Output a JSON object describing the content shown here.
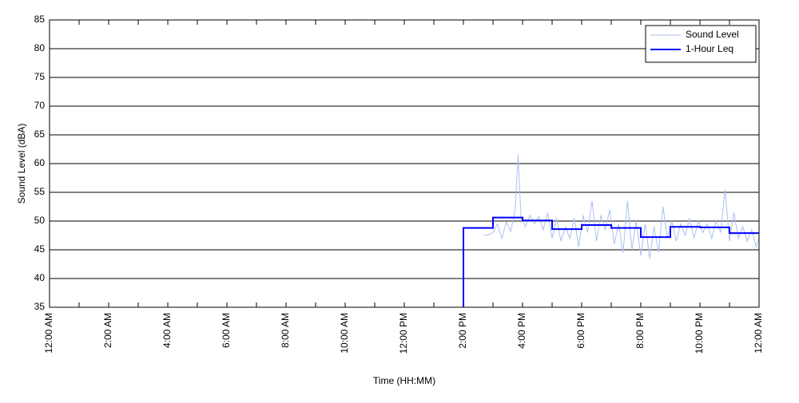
{
  "chart_data": {
    "type": "line",
    "y_label": "Sound Level (dBA)",
    "x_label": "Time (HH:MM)",
    "xlim": [
      0,
      24
    ],
    "xticks": [
      {
        "value": 0,
        "label": "12:00 AM"
      },
      {
        "value": 2,
        "label": "2:00 AM"
      },
      {
        "value": 4,
        "label": "4:00 AM"
      },
      {
        "value": 6,
        "label": "6:00 AM"
      },
      {
        "value": 8,
        "label": "8:00 AM"
      },
      {
        "value": 10,
        "label": "10:00 AM"
      },
      {
        "value": 12,
        "label": "12:00 PM"
      },
      {
        "value": 14,
        "label": "2:00 PM"
      },
      {
        "value": 16,
        "label": "4:00 PM"
      },
      {
        "value": 18,
        "label": "6:00 PM"
      },
      {
        "value": 20,
        "label": "8:00 PM"
      },
      {
        "value": 22,
        "label": "10:00 PM"
      },
      {
        "value": 24,
        "label": "12:00 AM"
      }
    ],
    "ylim": [
      35,
      85
    ],
    "yticks": [
      35,
      40,
      45,
      50,
      55,
      60,
      65,
      70,
      75,
      80,
      85
    ],
    "grid": true,
    "legend": "upper right",
    "series": [
      {
        "name": "Sound Level",
        "color": "#a9bff2",
        "step": false,
        "x": [
          14.7,
          14.85,
          15,
          15.15,
          15.3,
          15.45,
          15.6,
          15.75,
          15.85,
          15.95,
          16.1,
          16.25,
          16.4,
          16.55,
          16.7,
          16.85,
          17,
          17.15,
          17.3,
          17.45,
          17.6,
          17.75,
          17.9,
          18.05,
          18.2,
          18.35,
          18.5,
          18.65,
          18.8,
          18.95,
          19.1,
          19.25,
          19.4,
          19.55,
          19.7,
          19.85,
          20,
          20.15,
          20.3,
          20.45,
          20.6,
          20.75,
          20.9,
          21.05,
          21.2,
          21.35,
          21.5,
          21.65,
          21.8,
          21.95,
          22.1,
          22.25,
          22.4,
          22.55,
          22.7,
          22.85,
          23,
          23.15,
          23.3,
          23.45,
          23.6,
          23.75,
          23.9,
          24
        ],
        "values": [
          47.5,
          47.6,
          48,
          49.5,
          47,
          49.8,
          48.2,
          52,
          61.5,
          50.5,
          49,
          51,
          49.5,
          50.8,
          48.5,
          51.5,
          47,
          50.5,
          46.5,
          49,
          47,
          50.5,
          45.5,
          51,
          48,
          53.5,
          46.5,
          51,
          48.5,
          52,
          46,
          49.5,
          44.5,
          53.5,
          45,
          50,
          44,
          49.5,
          43.5,
          49,
          44.5,
          52.5,
          47,
          50,
          46.5,
          49.5,
          47.5,
          50.5,
          47,
          50,
          48,
          49.5,
          47,
          50,
          48,
          55.5,
          46.5,
          51.5,
          47,
          49,
          46.5,
          48.5,
          45.5,
          47
        ]
      },
      {
        "name": "1-Hour Leq",
        "color": "#0000ff",
        "step": true,
        "x": [
          14,
          14,
          15,
          16,
          17,
          18,
          19,
          20,
          21,
          22,
          23,
          24
        ],
        "values": [
          35,
          48.8,
          50.6,
          50.1,
          48.6,
          49.3,
          48.8,
          47.2,
          49,
          48.9,
          47.9,
          47.9
        ]
      }
    ]
  }
}
